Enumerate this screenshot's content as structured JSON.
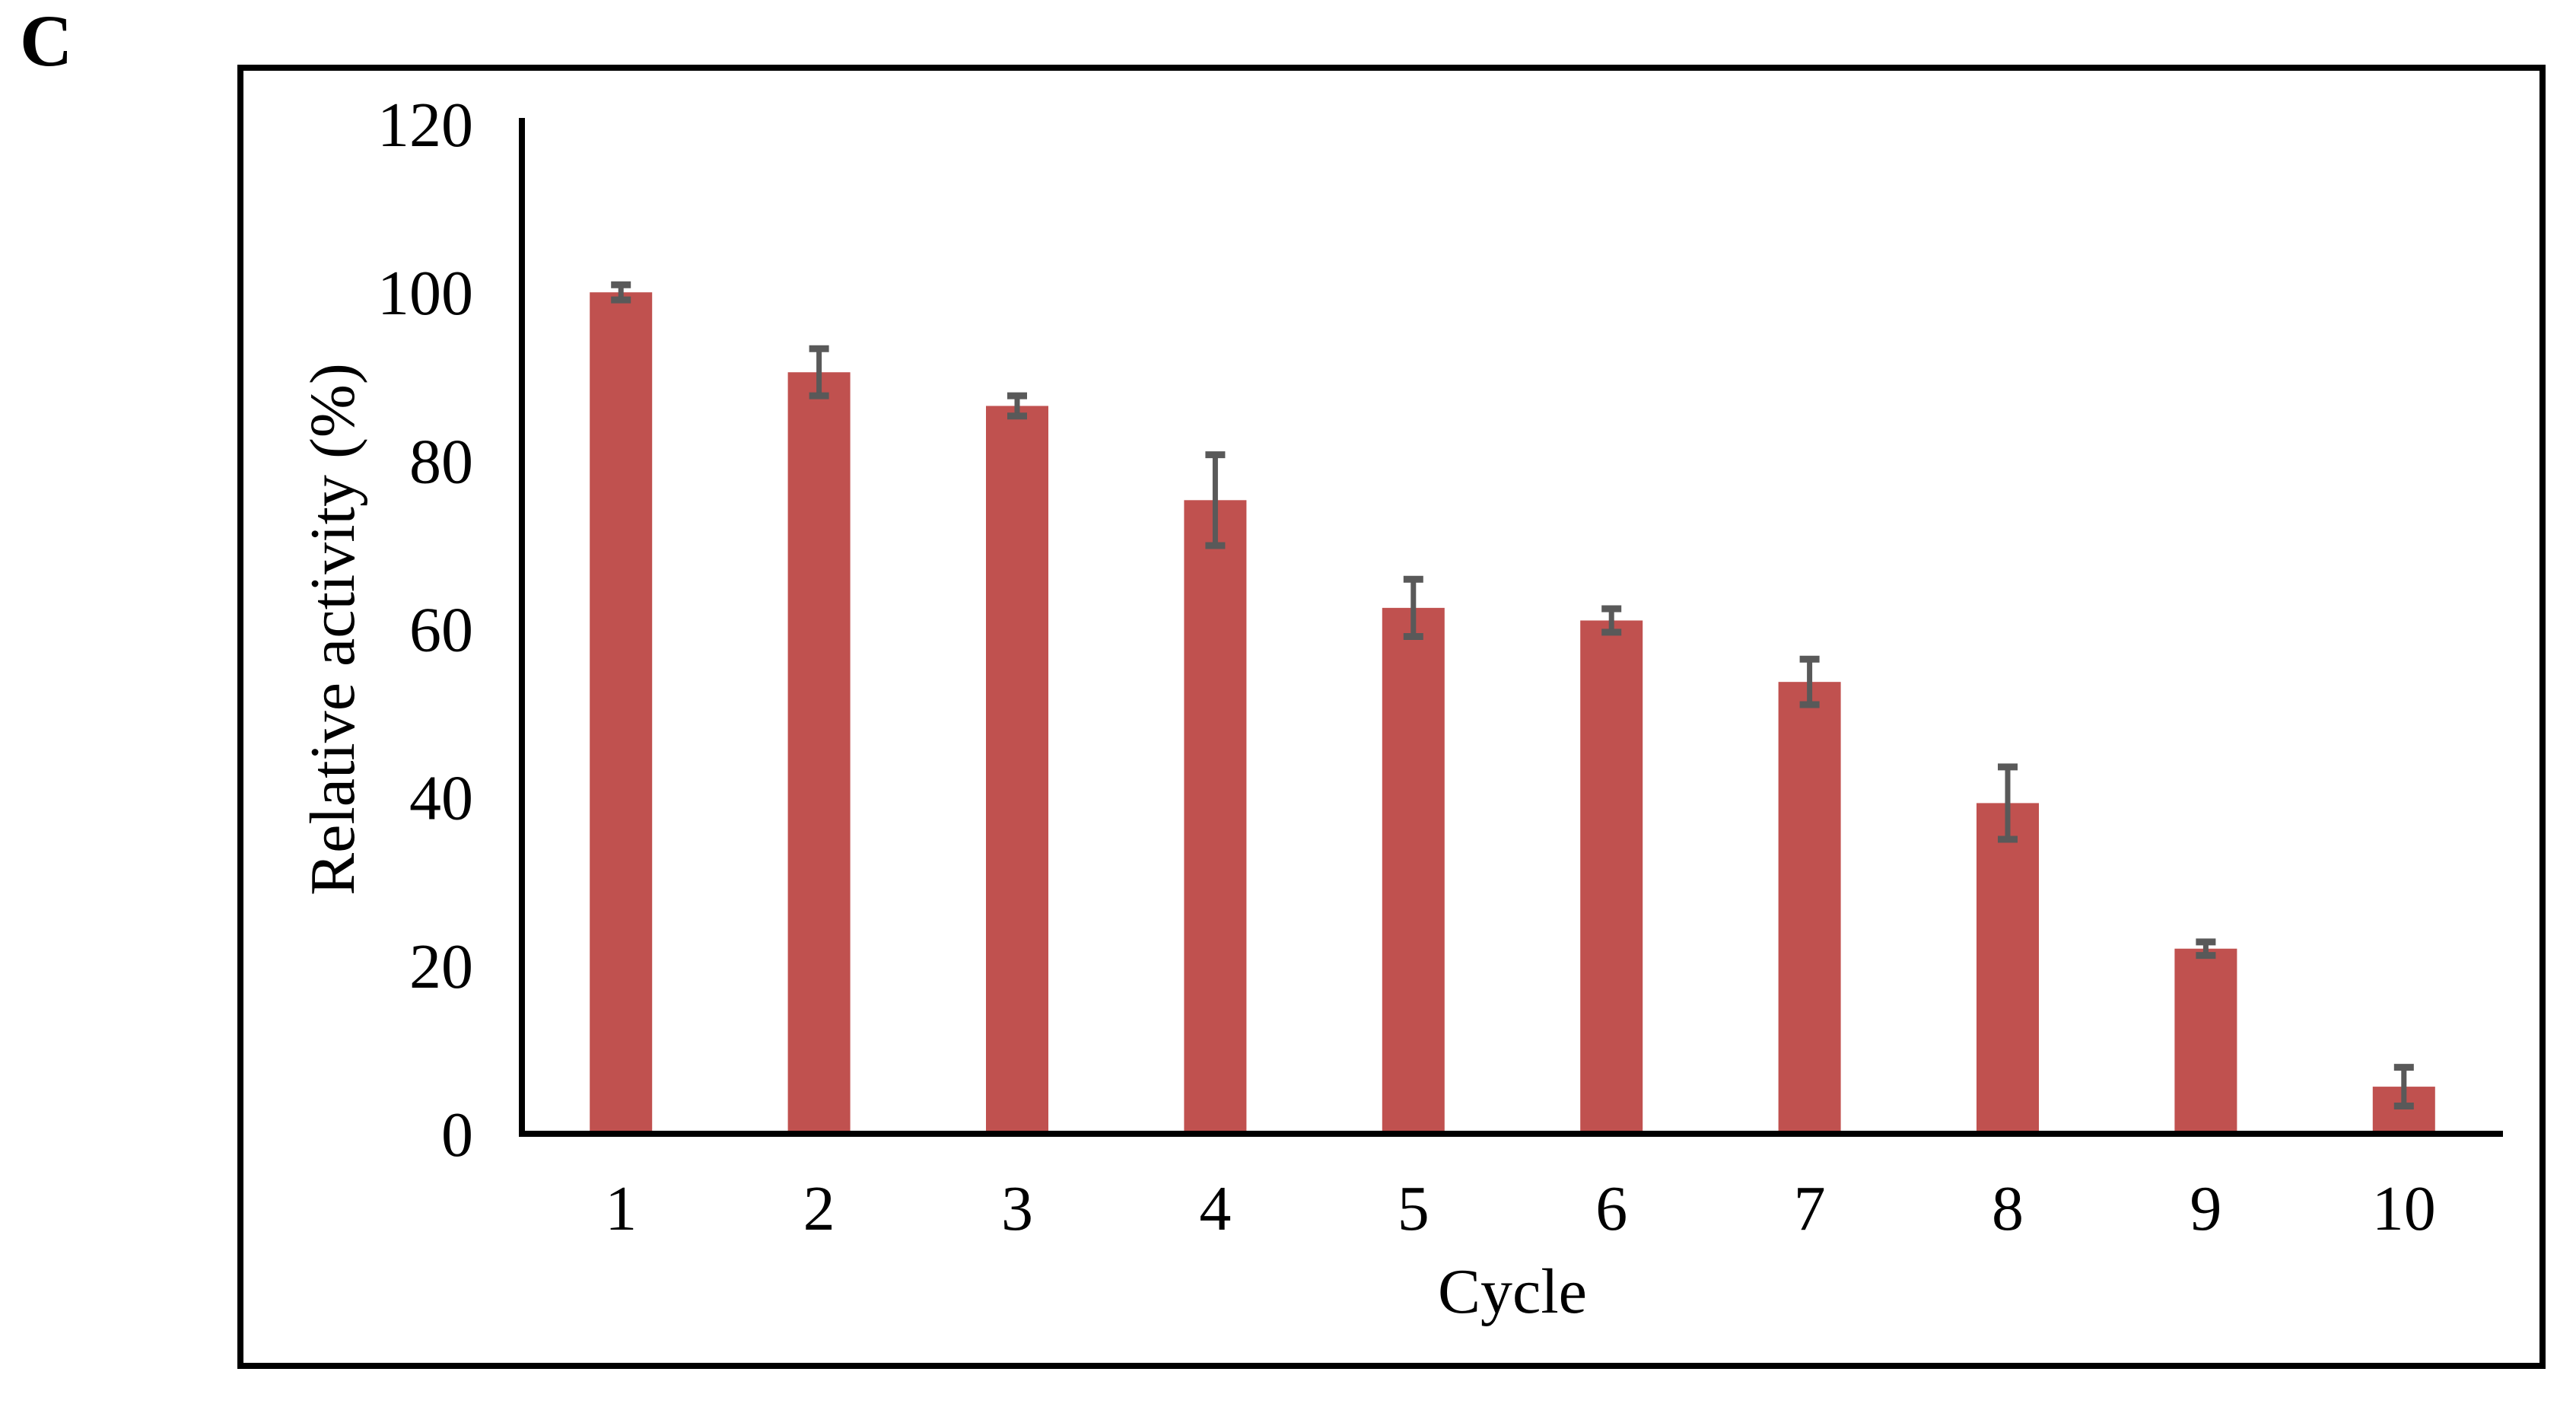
{
  "panel_label": "C",
  "chart_data": {
    "type": "bar",
    "title": "",
    "xlabel": "Cycle",
    "ylabel": "Relative activity (%)",
    "categories": [
      "1",
      "2",
      "3",
      "4",
      "5",
      "6",
      "7",
      "8",
      "9",
      "10"
    ],
    "series": [
      {
        "name": "Relative activity",
        "values": [
          100,
          90.5,
          86.5,
          75.3,
          62.5,
          61,
          53.7,
          39.3,
          22,
          5.6
        ],
        "errors": [
          0.9,
          2.8,
          1.2,
          5.4,
          3.4,
          1.4,
          2.7,
          4.3,
          0.8,
          2.3
        ]
      }
    ],
    "ylim": [
      0,
      120
    ],
    "yticks": [
      0,
      20,
      40,
      60,
      80,
      100,
      120
    ],
    "grid": false,
    "legend_position": "none",
    "bar_color": "#c0514f",
    "error_bar_color": "#595959",
    "axis_color": "#000000",
    "frame_color": "#000000"
  }
}
